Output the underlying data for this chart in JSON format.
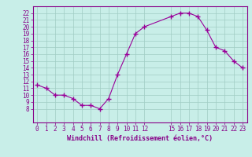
{
  "x": [
    0,
    1,
    2,
    3,
    4,
    5,
    6,
    7,
    8,
    9,
    10,
    11,
    12,
    15,
    16,
    17,
    18,
    19,
    20,
    21,
    22,
    23
  ],
  "y": [
    11.5,
    11.0,
    10.0,
    10.0,
    9.5,
    8.5,
    8.5,
    8.0,
    9.5,
    13.0,
    16.0,
    19.0,
    20.0,
    21.5,
    22.0,
    22.0,
    21.5,
    19.5,
    17.0,
    16.5,
    15.0,
    14.0
  ],
  "line_color": "#990099",
  "marker": "+",
  "marker_size": 4,
  "marker_color": "#990099",
  "bg_color": "#c8eee8",
  "grid_color": "#a0ccc4",
  "xlabel": "Windchill (Refroidissement éolien,°C)",
  "xlabel_color": "#880088",
  "tick_color": "#880088",
  "ylim": [
    6,
    23
  ],
  "xlim": [
    -0.5,
    23.5
  ],
  "yticks": [
    8,
    9,
    10,
    11,
    12,
    13,
    14,
    15,
    16,
    17,
    18,
    19,
    20,
    21,
    22
  ],
  "xticks": [
    0,
    1,
    2,
    3,
    4,
    5,
    6,
    7,
    8,
    9,
    10,
    11,
    12,
    15,
    16,
    17,
    18,
    19,
    20,
    21,
    22,
    23
  ],
  "spine_color": "#880088"
}
